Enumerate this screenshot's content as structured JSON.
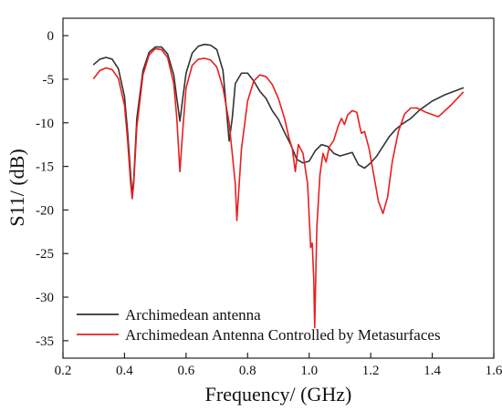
{
  "chart_data": {
    "type": "line",
    "title": "",
    "xlabel": "Frequency/ (GHz)",
    "ylabel": "S11/ (dB)",
    "xlim": [
      0.2,
      1.6
    ],
    "ylim": [
      -37,
      2
    ],
    "x_ticks": [
      0.2,
      0.4,
      0.6,
      0.8,
      1.0,
      1.2,
      1.4,
      1.6
    ],
    "x_tick_labels": [
      "0.2",
      "0.4",
      "0.6",
      "0.8",
      "1.0",
      "1.2",
      "1.4",
      "1.6"
    ],
    "y_ticks": [
      0,
      -5,
      -10,
      -15,
      -20,
      -25,
      -30,
      -35
    ],
    "y_tick_labels": [
      "0",
      "-5",
      "-10",
      "-15",
      "-20",
      "-25",
      "-30",
      "-35"
    ],
    "grid": false,
    "legend_position": "bottom-left",
    "series": [
      {
        "name": "Archimedean antenna",
        "color": "#333333",
        "points": [
          [
            0.3,
            -3.3
          ],
          [
            0.32,
            -2.7
          ],
          [
            0.34,
            -2.5
          ],
          [
            0.36,
            -2.7
          ],
          [
            0.38,
            -3.8
          ],
          [
            0.4,
            -7.0
          ],
          [
            0.41,
            -11.0
          ],
          [
            0.42,
            -16.0
          ],
          [
            0.425,
            -18.4
          ],
          [
            0.43,
            -16.5
          ],
          [
            0.44,
            -9.5
          ],
          [
            0.46,
            -4.0
          ],
          [
            0.48,
            -1.9
          ],
          [
            0.5,
            -1.3
          ],
          [
            0.52,
            -1.3
          ],
          [
            0.54,
            -2.1
          ],
          [
            0.56,
            -4.5
          ],
          [
            0.57,
            -7.2
          ],
          [
            0.58,
            -9.8
          ],
          [
            0.59,
            -7.0
          ],
          [
            0.6,
            -4.3
          ],
          [
            0.62,
            -2.0
          ],
          [
            0.64,
            -1.2
          ],
          [
            0.66,
            -1.0
          ],
          [
            0.68,
            -1.1
          ],
          [
            0.7,
            -1.6
          ],
          [
            0.72,
            -4.0
          ],
          [
            0.73,
            -8.0
          ],
          [
            0.74,
            -12.1
          ],
          [
            0.75,
            -9.5
          ],
          [
            0.76,
            -5.5
          ],
          [
            0.78,
            -4.3
          ],
          [
            0.8,
            -4.3
          ],
          [
            0.82,
            -5.2
          ],
          [
            0.84,
            -6.4
          ],
          [
            0.86,
            -7.2
          ],
          [
            0.88,
            -8.6
          ],
          [
            0.9,
            -9.6
          ],
          [
            0.92,
            -11.1
          ],
          [
            0.94,
            -12.5
          ],
          [
            0.96,
            -14.2
          ],
          [
            0.98,
            -14.6
          ],
          [
            1.0,
            -14.4
          ],
          [
            1.02,
            -13.2
          ],
          [
            1.04,
            -12.5
          ],
          [
            1.06,
            -12.7
          ],
          [
            1.08,
            -13.5
          ],
          [
            1.1,
            -13.8
          ],
          [
            1.14,
            -13.4
          ],
          [
            1.16,
            -14.8
          ],
          [
            1.18,
            -15.2
          ],
          [
            1.2,
            -14.6
          ],
          [
            1.22,
            -13.8
          ],
          [
            1.24,
            -12.7
          ],
          [
            1.26,
            -11.6
          ],
          [
            1.28,
            -10.8
          ],
          [
            1.3,
            -10.2
          ],
          [
            1.33,
            -9.5
          ],
          [
            1.36,
            -8.5
          ],
          [
            1.4,
            -7.5
          ],
          [
            1.44,
            -6.8
          ],
          [
            1.5,
            -6.0
          ]
        ]
      },
      {
        "name": "Archimedean Antenna Controlled by Metasurfaces",
        "color": "#e8201e",
        "points": [
          [
            0.3,
            -4.9
          ],
          [
            0.32,
            -4.0
          ],
          [
            0.34,
            -3.7
          ],
          [
            0.36,
            -3.9
          ],
          [
            0.38,
            -4.9
          ],
          [
            0.4,
            -8.0
          ],
          [
            0.41,
            -12.0
          ],
          [
            0.42,
            -17.0
          ],
          [
            0.425,
            -18.7
          ],
          [
            0.43,
            -17.0
          ],
          [
            0.44,
            -10.5
          ],
          [
            0.46,
            -4.5
          ],
          [
            0.48,
            -2.2
          ],
          [
            0.5,
            -1.5
          ],
          [
            0.52,
            -1.6
          ],
          [
            0.54,
            -2.5
          ],
          [
            0.56,
            -5.5
          ],
          [
            0.57,
            -9.5
          ],
          [
            0.58,
            -15.6
          ],
          [
            0.59,
            -10.5
          ],
          [
            0.6,
            -6.0
          ],
          [
            0.62,
            -3.4
          ],
          [
            0.64,
            -2.7
          ],
          [
            0.66,
            -2.6
          ],
          [
            0.68,
            -2.8
          ],
          [
            0.7,
            -3.6
          ],
          [
            0.72,
            -6.0
          ],
          [
            0.74,
            -10.0
          ],
          [
            0.76,
            -17.0
          ],
          [
            0.765,
            -21.2
          ],
          [
            0.77,
            -18.5
          ],
          [
            0.78,
            -13.0
          ],
          [
            0.8,
            -7.5
          ],
          [
            0.82,
            -5.2
          ],
          [
            0.84,
            -4.5
          ],
          [
            0.86,
            -4.7
          ],
          [
            0.88,
            -5.6
          ],
          [
            0.9,
            -7.2
          ],
          [
            0.92,
            -9.5
          ],
          [
            0.935,
            -11.8
          ],
          [
            0.945,
            -12.9
          ],
          [
            0.955,
            -15.6
          ],
          [
            0.965,
            -12.5
          ],
          [
            0.98,
            -13.5
          ],
          [
            0.995,
            -17.0
          ],
          [
            1.005,
            -24.3
          ],
          [
            1.01,
            -23.8
          ],
          [
            1.015,
            -28.0
          ],
          [
            1.018,
            -33.5
          ],
          [
            1.025,
            -22.0
          ],
          [
            1.035,
            -16.0
          ],
          [
            1.045,
            -13.5
          ],
          [
            1.055,
            -14.5
          ],
          [
            1.065,
            -12.8
          ],
          [
            1.08,
            -12.0
          ],
          [
            1.095,
            -10.3
          ],
          [
            1.105,
            -9.5
          ],
          [
            1.115,
            -10.2
          ],
          [
            1.125,
            -9.1
          ],
          [
            1.14,
            -8.6
          ],
          [
            1.155,
            -8.8
          ],
          [
            1.165,
            -10.5
          ],
          [
            1.17,
            -11.2
          ],
          [
            1.18,
            -11.0
          ],
          [
            1.195,
            -13.0
          ],
          [
            1.21,
            -16.0
          ],
          [
            1.225,
            -19.0
          ],
          [
            1.24,
            -20.4
          ],
          [
            1.255,
            -18.5
          ],
          [
            1.27,
            -14.5
          ],
          [
            1.29,
            -11.0
          ],
          [
            1.31,
            -9.0
          ],
          [
            1.33,
            -8.3
          ],
          [
            1.35,
            -8.3
          ],
          [
            1.38,
            -8.8
          ],
          [
            1.42,
            -9.3
          ],
          [
            1.46,
            -8.0
          ],
          [
            1.5,
            -6.5
          ]
        ]
      }
    ]
  }
}
